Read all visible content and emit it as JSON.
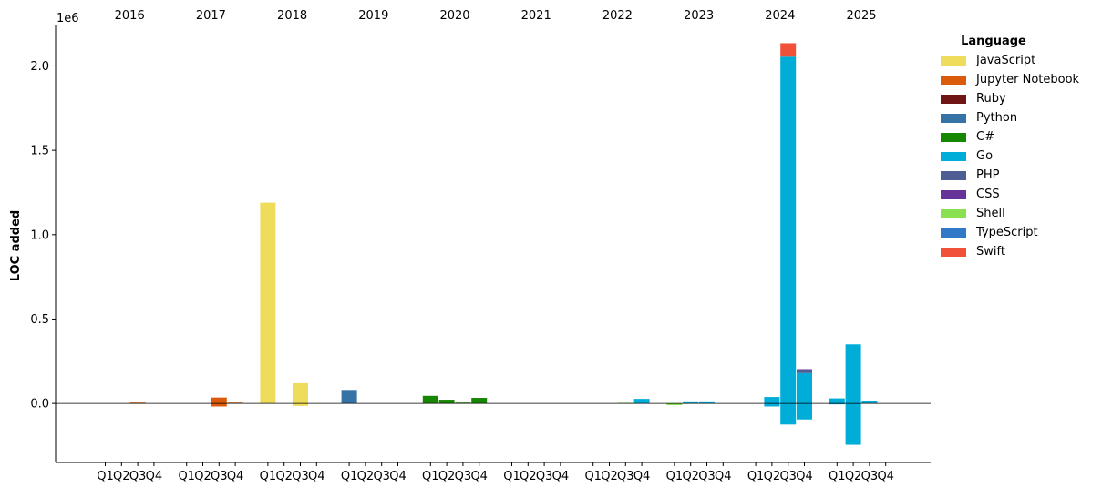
{
  "chart_data": {
    "type": "bar",
    "stacked": true,
    "ylabel": "LOC added",
    "y_offset_label": "1e6",
    "ylim": [
      -350000,
      2240000
    ],
    "yticks": [
      0,
      500000,
      1000000,
      1500000,
      2000000
    ],
    "ytick_labels": [
      "0.0",
      "0.5",
      "1.0",
      "1.5",
      "2.0"
    ],
    "years": [
      "2016",
      "2017",
      "2018",
      "2019",
      "2020",
      "2021",
      "2022",
      "2023",
      "2024",
      "2025"
    ],
    "quarters": [
      "Q1",
      "Q2",
      "Q3",
      "Q4"
    ],
    "legend": {
      "title": "Language",
      "position": "upper right, outside"
    },
    "series": [
      {
        "name": "JavaScript",
        "color": "#EFDC5A",
        "values": [
          {
            "year": "2016",
            "quarter": "Q3",
            "value": 3000
          },
          {
            "year": "2018",
            "quarter": "Q1",
            "value": 1190000
          },
          {
            "year": "2018",
            "quarter": "Q3",
            "value": 120000
          },
          {
            "year": "2018",
            "quarter": "Q3",
            "value": -15000
          }
        ]
      },
      {
        "name": "Jupyter Notebook",
        "color": "#DA5B0B",
        "values": [
          {
            "year": "2016",
            "quarter": "Q3",
            "value": 2000
          },
          {
            "year": "2017",
            "quarter": "Q3",
            "value": 35000
          },
          {
            "year": "2017",
            "quarter": "Q3",
            "value": -18000
          },
          {
            "year": "2017",
            "quarter": "Q4",
            "value": 5000
          }
        ]
      },
      {
        "name": "Ruby",
        "color": "#701516",
        "values": []
      },
      {
        "name": "Python",
        "color": "#3572A5",
        "values": [
          {
            "year": "2019",
            "quarter": "Q1",
            "value": 80000
          }
        ]
      },
      {
        "name": "C#",
        "color": "#178600",
        "values": [
          {
            "year": "2020",
            "quarter": "Q1",
            "value": 45000
          },
          {
            "year": "2020",
            "quarter": "Q2",
            "value": 22000
          },
          {
            "year": "2020",
            "quarter": "Q3",
            "value": 5000
          },
          {
            "year": "2020",
            "quarter": "Q4",
            "value": 33000
          }
        ]
      },
      {
        "name": "Go",
        "color": "#00ADD8",
        "values": [
          {
            "year": "2022",
            "quarter": "Q4",
            "value": 27000
          },
          {
            "year": "2023",
            "quarter": "Q2",
            "value": 7000
          },
          {
            "year": "2023",
            "quarter": "Q3",
            "value": 7000
          },
          {
            "year": "2024",
            "quarter": "Q2",
            "value": 38000
          },
          {
            "year": "2024",
            "quarter": "Q2",
            "value": -18000
          },
          {
            "year": "2024",
            "quarter": "Q3",
            "value": 2055000
          },
          {
            "year": "2024",
            "quarter": "Q3",
            "value": -125000
          },
          {
            "year": "2024",
            "quarter": "Q4",
            "value": 180000
          },
          {
            "year": "2024",
            "quarter": "Q4",
            "value": -95000
          },
          {
            "year": "2025",
            "quarter": "Q1",
            "value": 30000
          },
          {
            "year": "2025",
            "quarter": "Q1",
            "value": -5000
          },
          {
            "year": "2025",
            "quarter": "Q2",
            "value": 350000
          },
          {
            "year": "2025",
            "quarter": "Q2",
            "value": -245000
          },
          {
            "year": "2025",
            "quarter": "Q3",
            "value": 12000
          }
        ]
      },
      {
        "name": "PHP",
        "color": "#4F5D95",
        "values": [
          {
            "year": "2024",
            "quarter": "Q4",
            "value": 15000
          }
        ]
      },
      {
        "name": "CSS",
        "color": "#663399",
        "values": [
          {
            "year": "2024",
            "quarter": "Q4",
            "value": 8000
          }
        ]
      },
      {
        "name": "Shell",
        "color": "#89E051",
        "values": [
          {
            "year": "2022",
            "quarter": "Q3",
            "value": 4000
          },
          {
            "year": "2023",
            "quarter": "Q1",
            "value": -10000
          }
        ]
      },
      {
        "name": "TypeScript",
        "color": "#3178C6",
        "values": []
      },
      {
        "name": "Swift",
        "color": "#F05138",
        "values": [
          {
            "year": "2024",
            "quarter": "Q3",
            "value": 80000
          }
        ]
      }
    ]
  }
}
